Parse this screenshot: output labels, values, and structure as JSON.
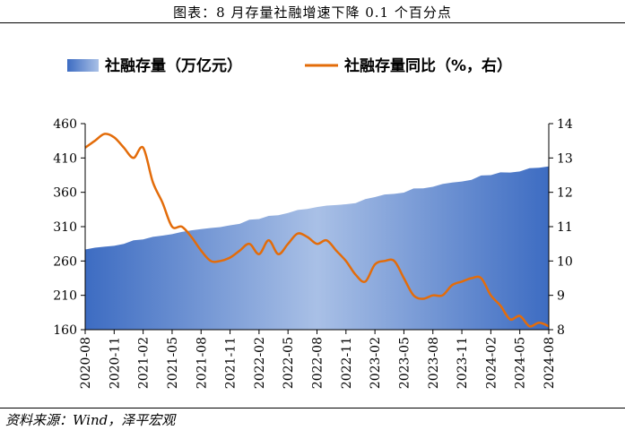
{
  "header": {
    "title": "图表：8 月存量社融增速下降 0.1 个百分点"
  },
  "footer": {
    "source": "资料来源：Wind，泽平宏观"
  },
  "colors": {
    "area_dark": "#3d6cc2",
    "area_light": "#a9c0e6",
    "line": "#e36c0a",
    "axis": "#000000"
  },
  "chart_data": {
    "type": "area+line",
    "title": "图表：8 月存量社融增速下降 0.1 个百分点",
    "legend": [
      "社融存量（万亿元）",
      "社融存量同比（%，右）"
    ],
    "legend_position": "top",
    "x": [
      "2020-08",
      "2020-09",
      "2020-10",
      "2020-11",
      "2020-12",
      "2021-01",
      "2021-02",
      "2021-03",
      "2021-04",
      "2021-05",
      "2021-06",
      "2021-07",
      "2021-08",
      "2021-09",
      "2021-10",
      "2021-11",
      "2021-12",
      "2022-01",
      "2022-02",
      "2022-03",
      "2022-04",
      "2022-05",
      "2022-06",
      "2022-07",
      "2022-08",
      "2022-09",
      "2022-10",
      "2022-11",
      "2022-12",
      "2023-01",
      "2023-02",
      "2023-03",
      "2023-04",
      "2023-05",
      "2023-06",
      "2023-07",
      "2023-08",
      "2023-09",
      "2023-10",
      "2023-11",
      "2023-12",
      "2024-01",
      "2024-02",
      "2024-03",
      "2024-04",
      "2024-05",
      "2024-06",
      "2024-07",
      "2024-08"
    ],
    "xticks": [
      "2020-08",
      "2020-11",
      "2021-02",
      "2021-05",
      "2021-08",
      "2021-11",
      "2022-02",
      "2022-05",
      "2022-08",
      "2022-11",
      "2023-02",
      "2023-05",
      "2023-08",
      "2023-11",
      "2024-02",
      "2024-05",
      "2024-08"
    ],
    "series": [
      {
        "name": "社融存量（万亿元）",
        "axis": "left",
        "style": "area",
        "values": [
          276.7,
          279.4,
          280.8,
          282.1,
          284.8,
          290.2,
          291.4,
          295.1,
          297.0,
          299.1,
          302.3,
          304.6,
          306.5,
          308.0,
          309.4,
          311.9,
          314.1,
          320.1,
          321.1,
          325.6,
          326.5,
          330.0,
          334.3,
          335.8,
          338.6,
          340.7,
          341.4,
          342.6,
          344.2,
          350.0,
          353.0,
          356.8,
          357.8,
          359.6,
          365.5,
          365.7,
          368.1,
          372.1,
          374.2,
          375.7,
          378.1,
          384.5,
          385.0,
          389.1,
          388.8,
          390.4,
          395.1,
          395.7,
          397.8
        ]
      },
      {
        "name": "社融存量同比（%，右）",
        "axis": "right",
        "style": "line",
        "values": [
          13.3,
          13.5,
          13.7,
          13.6,
          13.3,
          13.0,
          13.3,
          12.3,
          11.7,
          11.0,
          11.0,
          10.7,
          10.3,
          10.0,
          10.0,
          10.1,
          10.3,
          10.5,
          10.2,
          10.6,
          10.2,
          10.5,
          10.8,
          10.7,
          10.5,
          10.6,
          10.3,
          10.0,
          9.6,
          9.4,
          9.9,
          10.0,
          10.0,
          9.5,
          9.0,
          8.9,
          9.0,
          9.0,
          9.3,
          9.4,
          9.5,
          9.5,
          9.0,
          8.7,
          8.3,
          8.4,
          8.1,
          8.2,
          8.1
        ]
      }
    ],
    "ylim_left": [
      160,
      460
    ],
    "yticks_left": [
      160,
      210,
      260,
      310,
      360,
      410,
      460
    ],
    "ylim_right": [
      8,
      14
    ],
    "yticks_right": [
      8,
      9,
      10,
      11,
      12,
      13,
      14
    ],
    "grid": false
  }
}
